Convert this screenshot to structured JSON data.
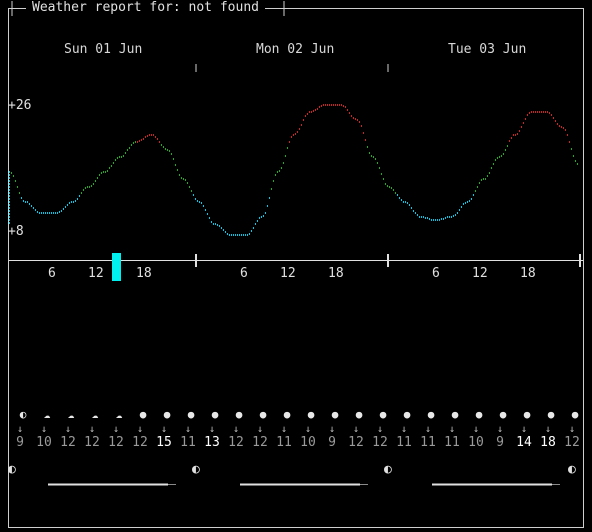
{
  "header": {
    "title": "Weather report for: not found"
  },
  "days": [
    {
      "label": "Sun 01 Jun"
    },
    {
      "label": "Mon 02 Jun"
    },
    {
      "label": "Tue 03 Jun"
    }
  ],
  "temp_axis": {
    "max_label": "+26",
    "min_label": "+8",
    "max": 26,
    "min": 8
  },
  "hour_ticks": [
    "6",
    "12",
    "18",
    "6",
    "12",
    "18",
    "6",
    "12",
    "18"
  ],
  "colors": {
    "cold": "#00c8e6",
    "mild": "#22aa22",
    "warm": "#cc2222",
    "now": "#00f0f0"
  },
  "chart_data": {
    "type": "line",
    "x_unit": "hours since start of forecast",
    "ylim": [
      8,
      26
    ],
    "x": [
      0,
      2,
      4,
      6,
      8,
      10,
      12,
      14,
      16,
      18,
      20,
      22,
      24,
      26,
      28,
      30,
      32,
      34,
      36,
      38,
      40,
      42,
      44,
      46,
      48,
      50,
      52,
      54,
      56,
      58,
      60,
      62,
      64,
      66,
      68,
      70,
      72
    ],
    "y": [
      17,
      13,
      11.5,
      11.5,
      13,
      15,
      17,
      19,
      21,
      22,
      20,
      16,
      13,
      10,
      8.5,
      8.5,
      11,
      17,
      22,
      25,
      26,
      26,
      24,
      19,
      15,
      13,
      11,
      10.5,
      11,
      13,
      16,
      19,
      22,
      25,
      25,
      23,
      18
    ]
  },
  "weather_icons": [
    "moon",
    "cloud-moon",
    "cloud-moon",
    "cloud-moon",
    "cloud-moon",
    "sun",
    "sun",
    "sun",
    "sun",
    "sun",
    "sun",
    "sun",
    "sun",
    "sun",
    "sun",
    "sun",
    "sun",
    "sun",
    "sun",
    "sun",
    "sun",
    "sun",
    "sun",
    "sun",
    "sun"
  ],
  "wind_speeds": [
    "9",
    "10",
    "12",
    "12",
    "12",
    "12",
    "15",
    "11",
    "13",
    "12",
    "12",
    "11",
    "10",
    "9",
    "12",
    "12",
    "11",
    "11",
    "11",
    "10",
    "9",
    "14",
    "18",
    "12"
  ],
  "wind_speed_highlight": [
    false,
    false,
    false,
    false,
    false,
    false,
    true,
    false,
    true,
    false,
    false,
    false,
    false,
    false,
    false,
    false,
    false,
    false,
    false,
    false,
    false,
    true,
    true,
    false
  ],
  "moon_phase": "first-quarter"
}
